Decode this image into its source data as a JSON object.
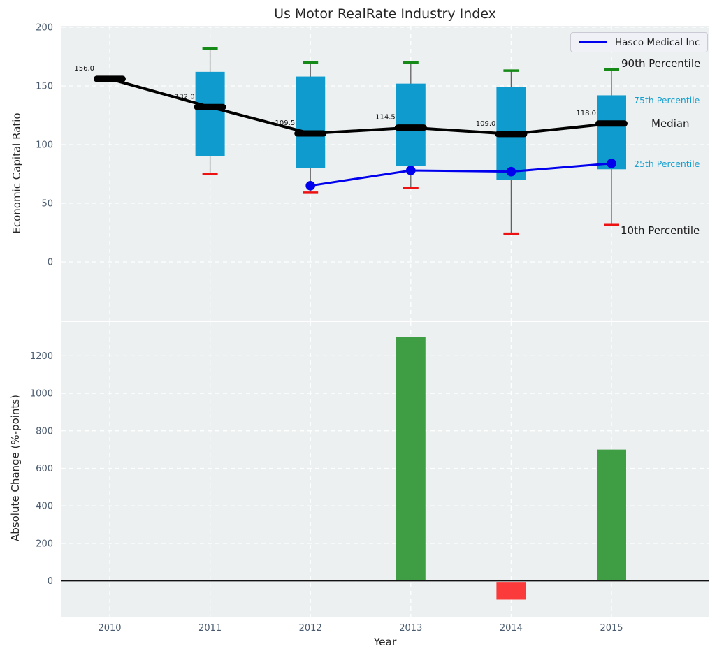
{
  "chart_data": [
    {
      "type": "boxplot",
      "title": "Us Motor RealRate Industry Index",
      "ylabel": "Economic Capital Ratio",
      "categories": [
        "2010",
        "2011",
        "2012",
        "2013",
        "2014",
        "2015"
      ],
      "yticks": [
        0,
        50,
        100,
        150,
        200
      ],
      "ylim": [
        -50,
        201.2
      ],
      "grid": true,
      "series": [
        {
          "name": "90th Percentile",
          "values": [
            null,
            182,
            170,
            170,
            163,
            164
          ]
        },
        {
          "name": "75th Percentile",
          "values": [
            null,
            162,
            158,
            152,
            149,
            142
          ]
        },
        {
          "name": "Median",
          "values": [
            156,
            132,
            109.5,
            114.5,
            109,
            118
          ]
        },
        {
          "name": "25th Percentile",
          "values": [
            null,
            90,
            80,
            82,
            70,
            79
          ]
        },
        {
          "name": "10th Percentile",
          "values": [
            null,
            75,
            59,
            63,
            24,
            32
          ]
        },
        {
          "name": "Hasco Medical Inc",
          "values": [
            null,
            null,
            65,
            78,
            77,
            84
          ]
        }
      ],
      "annotations": [
        "156.0",
        "132.0",
        "109.5",
        "114.5",
        "109.0",
        "118.0"
      ],
      "percentile_labels": [
        "90th Percentile",
        "75th Percentile",
        "Median",
        "25th Percentile",
        "10th Percentile"
      ],
      "legend": [
        "Hasco Medical Inc"
      ],
      "colors": {
        "box_fill": "#0F9BCD",
        "median": "#000000",
        "p90_cap": "#168A16",
        "p10_cap": "#EE1111",
        "company_line": "#0000EE",
        "whisker": "#616161",
        "panel_background": "#ECF0F1",
        "percentile_label_accent": "#18A0CF"
      }
    },
    {
      "type": "bar",
      "ylabel": "Absolute Change (%-points)",
      "xlabel": "Year",
      "categories": [
        "2010",
        "2011",
        "2012",
        "2013",
        "2014",
        "2015"
      ],
      "values": [
        null,
        null,
        null,
        1300,
        -100,
        700
      ],
      "yticks": [
        0,
        200,
        400,
        600,
        800,
        1000,
        1200
      ],
      "ylim": [
        -195,
        1380
      ],
      "grid": true,
      "colors": {
        "positive_bar": "#3F9E43",
        "negative_bar": "#FB3B3B",
        "zero_line": "#111111",
        "panel_background": "#ECF0F1"
      }
    }
  ]
}
